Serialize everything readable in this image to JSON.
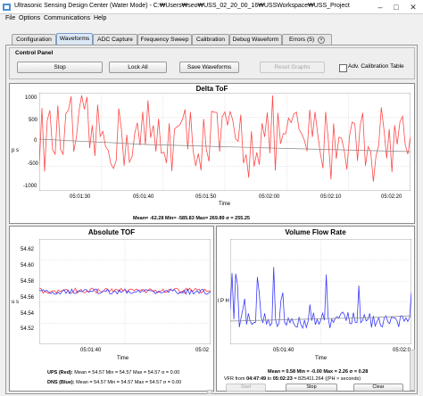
{
  "window": {
    "title": "Ultrasonic Sensing Design Center (Water Mode) - C:₩Users₩seo₩USS_02_20_00_16₩USSWorkspace₩USS_Project"
  },
  "menu": [
    "File",
    "Options",
    "Communications",
    "Help"
  ],
  "tabs": [
    "Configuration",
    "Waveforms",
    "ADC Capture",
    "Frequency Sweep",
    "Calibration",
    "Debug Waveform",
    "Errors (5)"
  ],
  "active_tab": "Waveforms",
  "control_panel": {
    "title": "Control Panel",
    "buttons": [
      "Stop",
      "Lock All",
      "Save Waveforms",
      "Reset Graphs"
    ],
    "checkbox_label": "Adv. Calibration Table",
    "checkbox_checked": false
  },
  "delta_tof": {
    "title": "Delta ToF",
    "y_unit": "p s",
    "y_ticks": [
      "1000",
      "500",
      "0",
      "-500",
      "-1000"
    ],
    "x_ticks": [
      "05:01:30",
      "05:01:40",
      "05:01:50",
      "05:02:00",
      "05:02:10",
      "05:02:20"
    ],
    "x_label": "Time",
    "stats": "Mean= -62.28 Min= -585.83 Max= 269.89 σ = 255.25"
  },
  "abs_tof": {
    "title": "Absolute TOF",
    "y_unit": "u s",
    "y_ticks": [
      "54.62",
      "54.60",
      "54.58",
      "54.56",
      "54.54",
      "54.52"
    ],
    "x_ticks": [
      "05:01:40",
      "05:02"
    ],
    "x_label": "Time",
    "ups_label": "UPS (Red):",
    "ups_stats": "Mean = 54.57 Min = 54.57 Max = 54.57 σ = 0.00",
    "dns_label": "DNS (Blue):",
    "dns_stats": "Mean = 54.57 Min = 54.57 Max = 54.57 σ = 0.00"
  },
  "vfr": {
    "title": "Volume Flow Rate",
    "y_unit": "l P H",
    "x_ticks": [
      "05:01:40",
      "05:02:0"
    ],
    "x_label": "Time",
    "stats": "Mean = 0.58 Min = -0.00 Max = 2.26 σ = 0.28",
    "range_prefix": "VFR from",
    "range_from": "04:47:49",
    "range_to_label": "to",
    "range_to": "05:02:23",
    "range_suffix": "= 825411.264 ((PH × seconds)",
    "buttons": [
      "Start",
      "Stop",
      "Clear"
    ]
  },
  "colors": {
    "accent_tab": "#dbe8f5",
    "ups_red": "#ff3b3b",
    "dns_blue": "#3a3aff",
    "grid": "#c8c8c8",
    "avg_line": "#7a7a7a"
  }
}
